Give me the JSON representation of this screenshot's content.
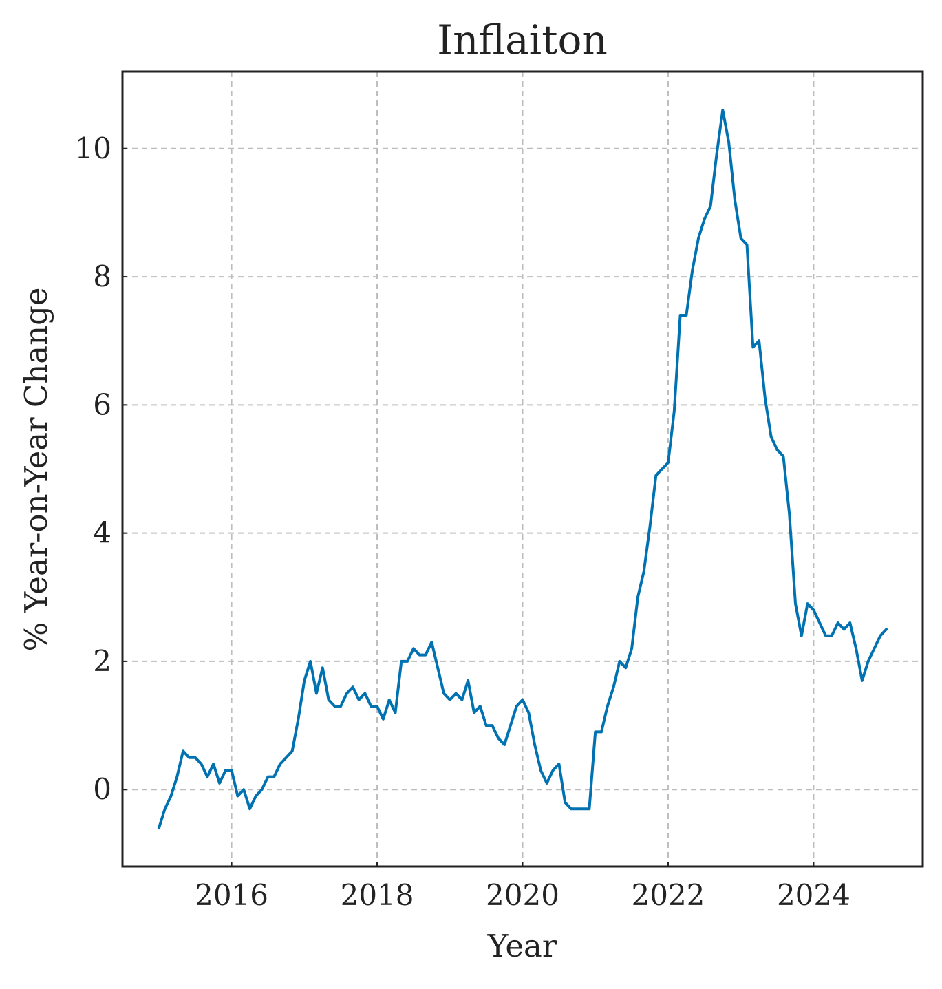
{
  "chart_data": {
    "type": "line",
    "title": "Inflaiton",
    "xlabel": "Year",
    "ylabel": "% Year-on-Year Change",
    "xlim": [
      2014.5,
      2025.5
    ],
    "ylim": [
      -1.2,
      11.2
    ],
    "xticks": [
      2016,
      2018,
      2020,
      2022,
      2024
    ],
    "xtick_labels": [
      "2016",
      "2018",
      "2020",
      "2022",
      "2024"
    ],
    "yticks": [
      0,
      2,
      4,
      6,
      8,
      10
    ],
    "ytick_labels": [
      "0",
      "2",
      "4",
      "6",
      "8",
      "10"
    ],
    "grid": true,
    "colors": {
      "series": "#0072b2",
      "frame": "#222222",
      "grid": "#bdbdbd"
    },
    "series": [
      {
        "x_start": "2015-01",
        "frequency": "monthly",
        "x": [
          "2015-01",
          "2015-02",
          "2015-03",
          "2015-04",
          "2015-05",
          "2015-06",
          "2015-07",
          "2015-08",
          "2015-09",
          "2015-10",
          "2015-11",
          "2015-12",
          "2016-01",
          "2016-02",
          "2016-03",
          "2016-04",
          "2016-05",
          "2016-06",
          "2016-07",
          "2016-08",
          "2016-09",
          "2016-10",
          "2016-11",
          "2016-12",
          "2017-01",
          "2017-02",
          "2017-03",
          "2017-04",
          "2017-05",
          "2017-06",
          "2017-07",
          "2017-08",
          "2017-09",
          "2017-10",
          "2017-11",
          "2017-12",
          "2018-01",
          "2018-02",
          "2018-03",
          "2018-04",
          "2018-05",
          "2018-06",
          "2018-07",
          "2018-08",
          "2018-09",
          "2018-10",
          "2018-11",
          "2018-12",
          "2019-01",
          "2019-02",
          "2019-03",
          "2019-04",
          "2019-05",
          "2019-06",
          "2019-07",
          "2019-08",
          "2019-09",
          "2019-10",
          "2019-11",
          "2019-12",
          "2020-01",
          "2020-02",
          "2020-03",
          "2020-04",
          "2020-05",
          "2020-06",
          "2020-07",
          "2020-08",
          "2020-09",
          "2020-10",
          "2020-11",
          "2020-12",
          "2021-01",
          "2021-02",
          "2021-03",
          "2021-04",
          "2021-05",
          "2021-06",
          "2021-07",
          "2021-08",
          "2021-09",
          "2021-10",
          "2021-11",
          "2021-12",
          "2022-01",
          "2022-02",
          "2022-03",
          "2022-04",
          "2022-05",
          "2022-06",
          "2022-07",
          "2022-08",
          "2022-09",
          "2022-10",
          "2022-11",
          "2022-12",
          "2023-01",
          "2023-02",
          "2023-03",
          "2023-04",
          "2023-05",
          "2023-06",
          "2023-07",
          "2023-08",
          "2023-09",
          "2023-10",
          "2023-11",
          "2023-12",
          "2024-01",
          "2024-02",
          "2024-03",
          "2024-04",
          "2024-05",
          "2024-06",
          "2024-07",
          "2024-08",
          "2024-09",
          "2024-10",
          "2024-11",
          "2024-12",
          "2025-01"
        ],
        "values": [
          -0.6,
          -0.3,
          -0.1,
          0.2,
          0.6,
          0.5,
          0.5,
          0.4,
          0.2,
          0.4,
          0.1,
          0.3,
          0.3,
          -0.1,
          0.0,
          -0.3,
          -0.1,
          0.0,
          0.2,
          0.2,
          0.4,
          0.5,
          0.6,
          1.1,
          1.7,
          2.0,
          1.5,
          1.9,
          1.4,
          1.3,
          1.3,
          1.5,
          1.6,
          1.4,
          1.5,
          1.3,
          1.3,
          1.1,
          1.4,
          1.2,
          2.0,
          2.0,
          2.2,
          2.1,
          2.1,
          2.3,
          1.9,
          1.5,
          1.4,
          1.5,
          1.4,
          1.7,
          1.2,
          1.3,
          1.0,
          1.0,
          0.8,
          0.7,
          1.0,
          1.3,
          1.4,
          1.2,
          0.7,
          0.3,
          0.1,
          0.3,
          0.4,
          -0.2,
          -0.3,
          -0.3,
          -0.3,
          -0.3,
          0.9,
          0.9,
          1.3,
          1.6,
          2.0,
          1.9,
          2.2,
          3.0,
          3.4,
          4.1,
          4.9,
          5.0,
          5.1,
          5.9,
          7.4,
          7.4,
          8.1,
          8.6,
          8.9,
          9.1,
          9.9,
          10.6,
          10.1,
          9.2,
          8.6,
          8.5,
          6.9,
          7.0,
          6.1,
          5.5,
          5.3,
          5.2,
          4.3,
          2.9,
          2.4,
          2.9,
          2.8,
          2.6,
          2.4,
          2.4,
          2.6,
          2.5,
          2.6,
          2.2,
          1.7,
          2.0,
          2.2,
          2.4,
          2.5
        ]
      }
    ]
  }
}
